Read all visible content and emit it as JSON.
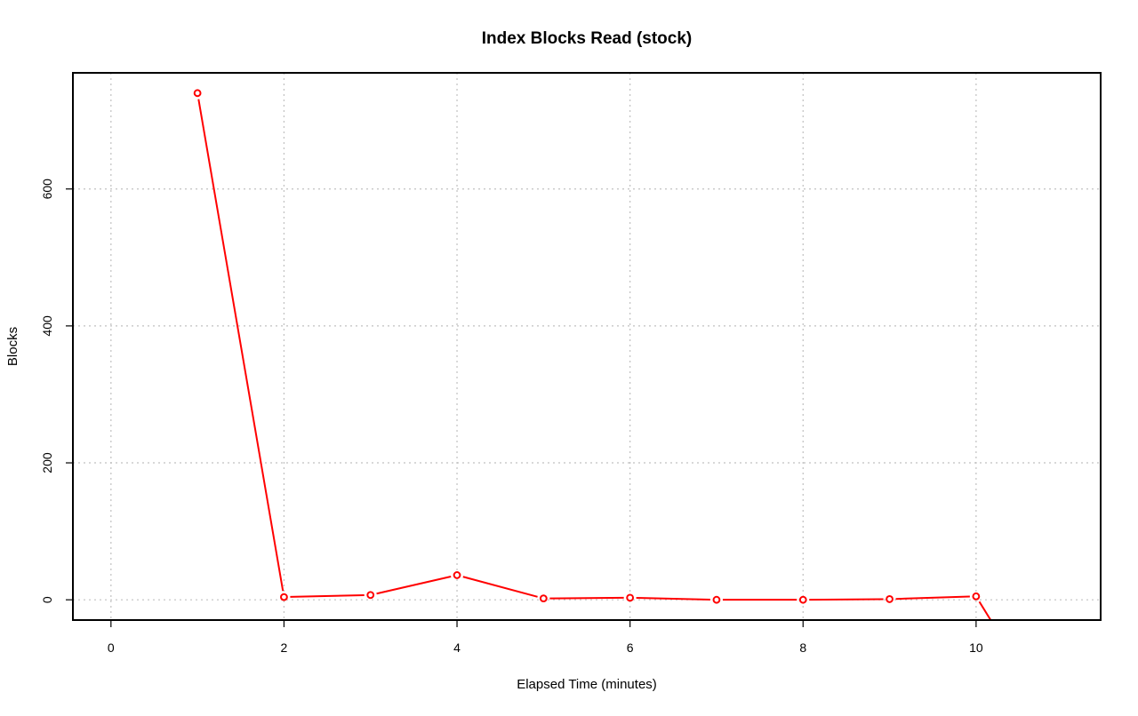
{
  "chart_data": {
    "type": "line",
    "title": "Index Blocks Read (stock)",
    "xlabel": "Elapsed Time (minutes)",
    "ylabel": "Blocks",
    "xlim": [
      -0.44,
      11.44
    ],
    "ylim": [
      -29.6,
      769.6
    ],
    "x_ticks": [
      0,
      2,
      4,
      6,
      8,
      10
    ],
    "y_ticks": [
      0,
      200,
      400,
      600
    ],
    "grid": true,
    "series": [
      {
        "color": "#ff0000",
        "x": [
          1,
          2,
          3,
          4,
          5,
          6,
          7,
          8,
          9,
          10,
          11
        ],
        "y": [
          740,
          4,
          7,
          36,
          2,
          3,
          0,
          0,
          1,
          5,
          -200
        ]
      }
    ]
  }
}
